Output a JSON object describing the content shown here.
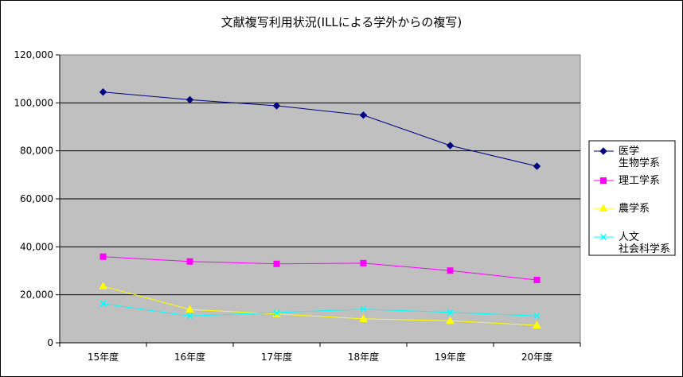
{
  "chart_data": {
    "type": "line",
    "title": "文献複写利用状況(ILLによる学外からの複写)",
    "xlabel": "",
    "ylabel": "",
    "categories": [
      "15年度",
      "16年度",
      "17年度",
      "18年度",
      "19年度",
      "20年度"
    ],
    "ylim": [
      0,
      120000
    ],
    "yticks": [
      0,
      20000,
      40000,
      60000,
      80000,
      100000,
      120000
    ],
    "ytick_labels": [
      "0",
      "20,000",
      "40,000",
      "60,000",
      "80,000",
      "100,000",
      "120,000"
    ],
    "grid": true,
    "legend_position": "right",
    "plot_background": "#c0c0c0",
    "series": [
      {
        "name": "医学\n生物学系",
        "legend_lines": [
          "医学",
          "生物学系"
        ],
        "color": "#000080",
        "marker": "diamond",
        "values": [
          104500,
          101300,
          98800,
          94900,
          82200,
          73600
        ]
      },
      {
        "name": "理工学系",
        "legend_lines": [
          "理工学系"
        ],
        "color": "#ff00ff",
        "marker": "square",
        "values": [
          35900,
          33900,
          32900,
          33200,
          30100,
          26200
        ]
      },
      {
        "name": "農学系",
        "legend_lines": [
          "農学系"
        ],
        "color": "#ffff00",
        "marker": "triangle",
        "values": [
          23600,
          13900,
          12000,
          10000,
          9200,
          7300
        ]
      },
      {
        "name": "人文\n社会科学系",
        "legend_lines": [
          "人文",
          "社会科学系"
        ],
        "color": "#00ffff",
        "marker": "x",
        "values": [
          16300,
          11200,
          12600,
          14000,
          12700,
          11200
        ]
      }
    ]
  }
}
